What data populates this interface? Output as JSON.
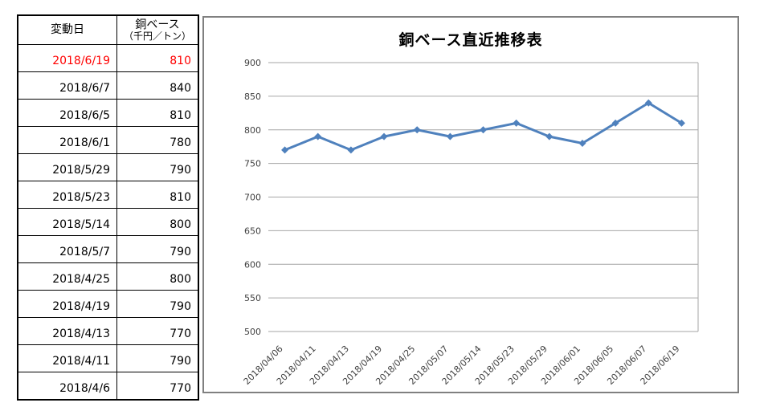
{
  "table": {
    "header": {
      "date_label": "変動日",
      "value_label_line1": "銅ベース",
      "value_label_line2": "（千円／トン）"
    },
    "highlight_color": "#FF0000",
    "rows": [
      {
        "date": "2018/6/19",
        "value": "810",
        "highlighted": true
      },
      {
        "date": "2018/6/7",
        "value": "840",
        "highlighted": false
      },
      {
        "date": "2018/6/5",
        "value": "810",
        "highlighted": false
      },
      {
        "date": "2018/6/1",
        "value": "780",
        "highlighted": false
      },
      {
        "date": "2018/5/29",
        "value": "790",
        "highlighted": false
      },
      {
        "date": "2018/5/23",
        "value": "810",
        "highlighted": false
      },
      {
        "date": "2018/5/14",
        "value": "800",
        "highlighted": false
      },
      {
        "date": "2018/5/7",
        "value": "790",
        "highlighted": false
      },
      {
        "date": "2018/4/25",
        "value": "800",
        "highlighted": false
      },
      {
        "date": "2018/4/19",
        "value": "790",
        "highlighted": false
      },
      {
        "date": "2018/4/13",
        "value": "770",
        "highlighted": false
      },
      {
        "date": "2018/4/11",
        "value": "790",
        "highlighted": false
      },
      {
        "date": "2018/4/6",
        "value": "770",
        "highlighted": false
      }
    ]
  },
  "chart_data": {
    "type": "line",
    "title": "銅ベース直近推移表",
    "categories": [
      "2018/04/06",
      "2018/04/11",
      "2018/04/13",
      "2018/04/19",
      "2018/04/25",
      "2018/05/07",
      "2018/05/14",
      "2018/05/23",
      "2018/05/29",
      "2018/06/01",
      "2018/06/05",
      "2018/06/07",
      "2018/06/19"
    ],
    "values": [
      770,
      790,
      770,
      790,
      800,
      790,
      800,
      810,
      790,
      780,
      810,
      840,
      810
    ],
    "xlabel": "",
    "ylabel": "",
    "ylim": [
      500,
      900
    ],
    "ytick_step": 50,
    "grid": true,
    "legend": "none",
    "marker": "diamond",
    "line_color": "#4F81BD",
    "gridline_color": "#A6A6A6",
    "plot_border_color": "#A6A6A6",
    "axis_label_color": "#3F3F3F",
    "chart_border_color": "#808080"
  }
}
